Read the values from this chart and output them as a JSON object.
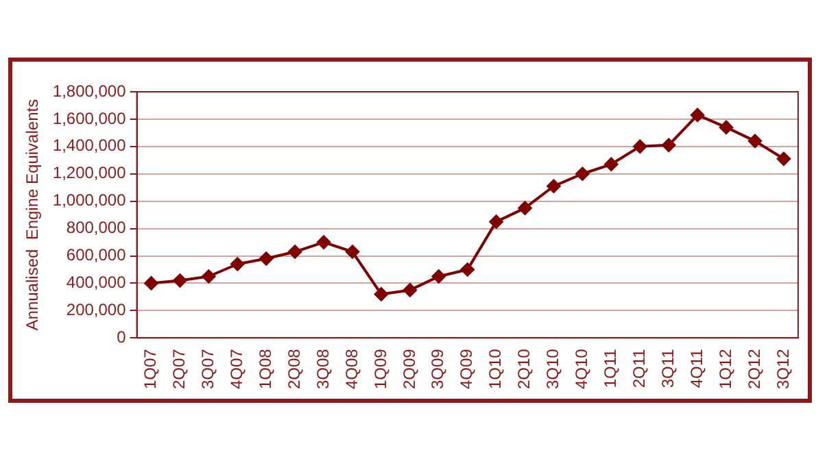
{
  "chart_data": {
    "type": "line",
    "ylabel": "Annualised  Engine Equivalents",
    "categories": [
      "1Q07",
      "2Q07",
      "3Q07",
      "4Q07",
      "1Q08",
      "2Q08",
      "3Q08",
      "4Q08",
      "1Q09",
      "2Q09",
      "3Q09",
      "4Q09",
      "1Q10",
      "2Q10",
      "3Q10",
      "4Q10",
      "1Q11",
      "2Q11",
      "3Q11",
      "4Q11",
      "1Q12",
      "2Q12",
      "3Q12"
    ],
    "series": [
      {
        "color": "#7f0000",
        "values": [
          400000,
          420000,
          450000,
          540000,
          580000,
          630000,
          700000,
          630000,
          320000,
          350000,
          450000,
          500000,
          850000,
          950000,
          1110000,
          1200000,
          1270000,
          1400000,
          1410000,
          1630000,
          1540000,
          1440000,
          1310000
        ]
      }
    ],
    "ylim": [
      0,
      1800000
    ],
    "yticks": [
      0,
      {
        "value": 200000,
        "label": "200,000"
      },
      {
        "value": 400000,
        "label": "400,000"
      },
      {
        "value": 600000,
        "label": "600,000"
      },
      {
        "value": 800000,
        "label": "800,000"
      },
      {
        "value": 1000000,
        "label": "1,000,000"
      },
      {
        "value": 1200000,
        "label": "1,200,000"
      },
      {
        "value": 1400000,
        "label": "1,400,000"
      },
      {
        "value": 1600000,
        "label": "1,600,000"
      },
      {
        "value": 1800000,
        "label": "1,800,000"
      }
    ],
    "grid": "y",
    "legend": false,
    "marker": "diamond",
    "line_style": "solid"
  }
}
